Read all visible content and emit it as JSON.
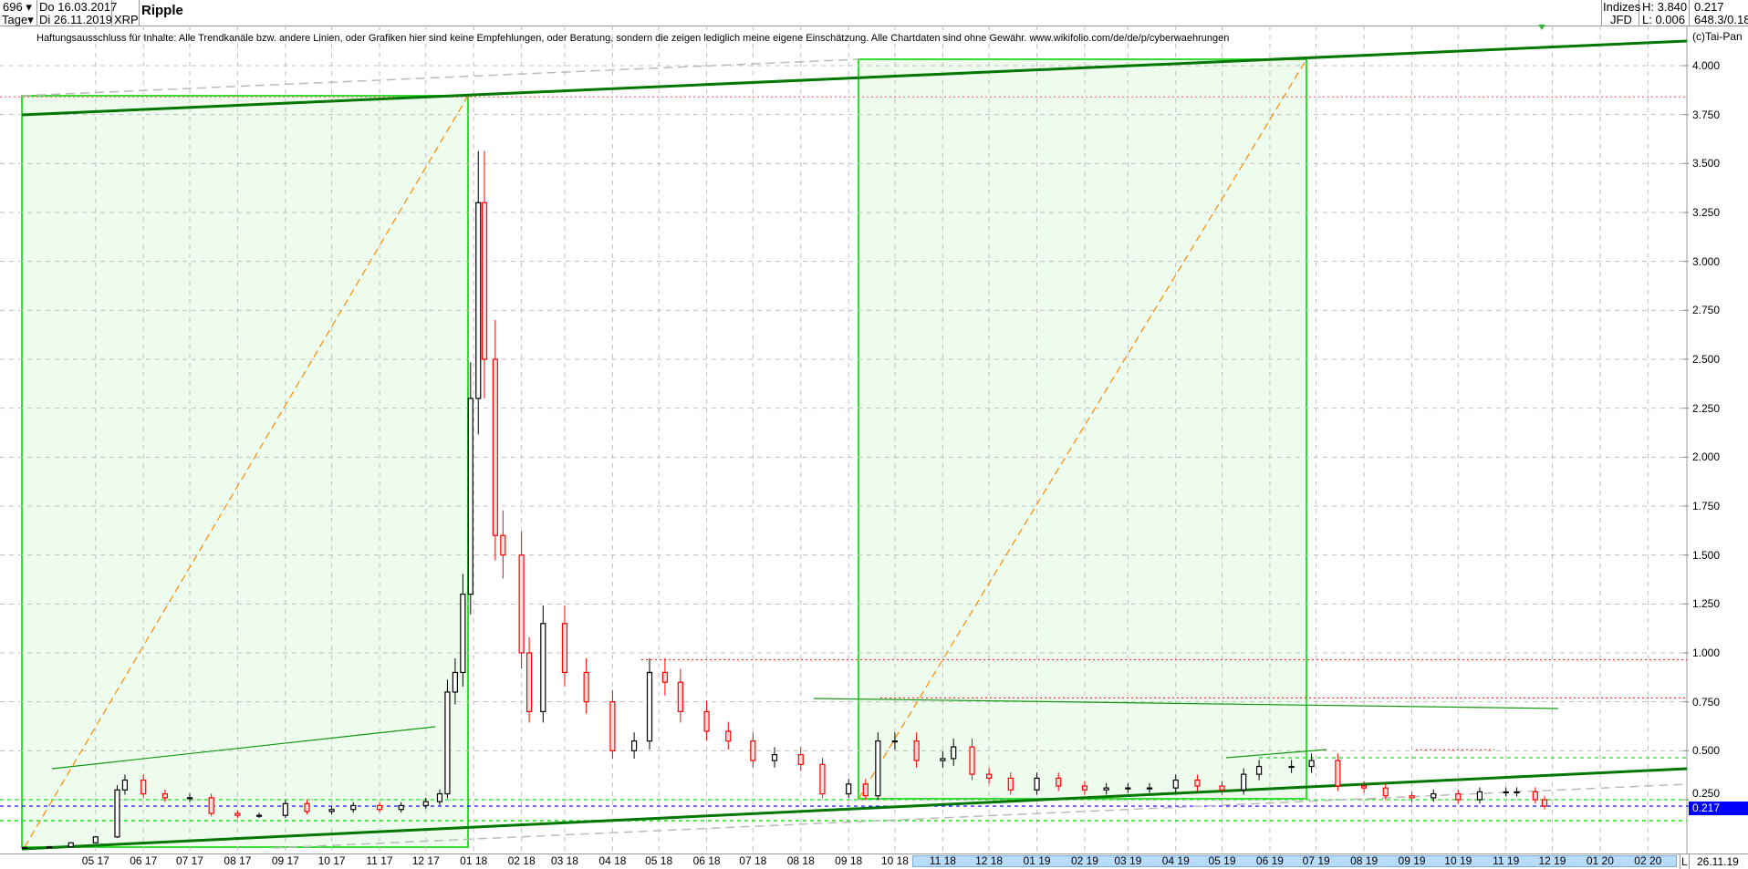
{
  "header": {
    "count": "696",
    "period": "Tage",
    "start_date": "Do 16.03.2017",
    "end_date": "Di 26.11.2019",
    "symbol": "XRP",
    "title": "Ripple",
    "market_1": "Indizes",
    "market_2": "JFD",
    "high": "H: 3.840",
    "low": "L: 0.006",
    "last": "0.217",
    "extra": "648.3/0.18"
  },
  "disclaimer": "Haftungsausschluss für Inhalte: Alle Trendkanäle bzw. andere Linien, oder Grafiken hier sind keine Empfehlungen, oder Beratung, sondern die zeigen lediglich meine eigene Einschätzung. Alle Chartdaten sind ohne Gewähr.  www.wikifolio.com/de/de/p/cyberwaehrungen",
  "copyright": "(c)Tai-Pan",
  "footer": {
    "scale_mode": "L",
    "last_date": "26.11.19"
  },
  "colors": {
    "up_body": "#ffffff",
    "up_outline": "#000000",
    "down": "#ff0000",
    "channel": "#007700",
    "box_fill": "#eefcee",
    "box_border": "#33dd33",
    "fib_dashed": "#ff8800",
    "current_price": "#0000ff"
  },
  "chart_data": {
    "type": "candlestick",
    "symbol": "XRP",
    "ylim": [
      0,
      4.1
    ],
    "y_ticks": [
      "0.250",
      "0.500",
      "0.750",
      "1.000",
      "1.250",
      "1.500",
      "1.750",
      "2.000",
      "2.250",
      "2.500",
      "2.750",
      "3.000",
      "3.250",
      "3.500",
      "3.750",
      "4.000"
    ],
    "x_ticks": [
      "05 17",
      "06 17",
      "07 17",
      "08 17",
      "09 17",
      "10 17",
      "11 17",
      "12 17",
      "01 18",
      "02 18",
      "03 18",
      "04 18",
      "05 18",
      "06 18",
      "07 18",
      "08 18",
      "09 18",
      "10 18",
      "11 18",
      "12 18",
      "01 19",
      "02 19",
      "03 19",
      "04 19",
      "05 19",
      "06 19",
      "07 19",
      "08 19",
      "09 19",
      "10 19",
      "11 19",
      "12 19",
      "01 20",
      "02 20"
    ],
    "grid": true,
    "current_value": "0.217",
    "high": 3.84,
    "low": 0.006,
    "dates": [
      "2017-03-16",
      "2017-04-01",
      "2017-04-15",
      "2017-05-01",
      "2017-05-15",
      "2017-05-20",
      "2017-06-01",
      "2017-06-15",
      "2017-07-01",
      "2017-07-15",
      "2017-08-01",
      "2017-08-15",
      "2017-09-01",
      "2017-09-15",
      "2017-10-01",
      "2017-10-15",
      "2017-11-01",
      "2017-11-15",
      "2017-12-01",
      "2017-12-10",
      "2017-12-15",
      "2017-12-20",
      "2017-12-25",
      "2017-12-30",
      "2018-01-04",
      "2018-01-08",
      "2018-01-15",
      "2018-01-20",
      "2018-02-01",
      "2018-02-06",
      "2018-02-15",
      "2018-03-01",
      "2018-03-15",
      "2018-04-01",
      "2018-04-15",
      "2018-04-25",
      "2018-05-05",
      "2018-05-15",
      "2018-06-01",
      "2018-06-15",
      "2018-07-01",
      "2018-07-15",
      "2018-08-01",
      "2018-08-15",
      "2018-09-01",
      "2018-09-12",
      "2018-09-20",
      "2018-10-01",
      "2018-10-15",
      "2018-11-01",
      "2018-11-08",
      "2018-11-20",
      "2018-12-01",
      "2018-12-15",
      "2019-01-01",
      "2019-01-15",
      "2019-02-01",
      "2019-02-15",
      "2019-03-01",
      "2019-03-15",
      "2019-04-01",
      "2019-04-15",
      "2019-05-01",
      "2019-05-15",
      "2019-05-25",
      "2019-06-15",
      "2019-06-28",
      "2019-07-15",
      "2019-08-01",
      "2019-08-15",
      "2019-09-01",
      "2019-09-15",
      "2019-10-01",
      "2019-10-15",
      "2019-11-01",
      "2019-11-08",
      "2019-11-20",
      "2019-11-26"
    ],
    "close": [
      0.006,
      0.01,
      0.03,
      0.06,
      0.3,
      0.35,
      0.28,
      0.26,
      0.26,
      0.18,
      0.17,
      0.17,
      0.23,
      0.19,
      0.2,
      0.22,
      0.2,
      0.22,
      0.24,
      0.28,
      0.8,
      0.9,
      1.3,
      2.3,
      3.3,
      2.5,
      1.6,
      1.5,
      1.0,
      0.7,
      1.15,
      0.9,
      0.75,
      0.5,
      0.55,
      0.9,
      0.85,
      0.7,
      0.6,
      0.55,
      0.45,
      0.48,
      0.43,
      0.28,
      0.33,
      0.27,
      0.55,
      0.55,
      0.45,
      0.46,
      0.52,
      0.38,
      0.36,
      0.3,
      0.36,
      0.32,
      0.3,
      0.31,
      0.31,
      0.31,
      0.35,
      0.32,
      0.3,
      0.38,
      0.42,
      0.42,
      0.45,
      0.32,
      0.31,
      0.27,
      0.26,
      0.28,
      0.25,
      0.29,
      0.29,
      0.29,
      0.25,
      0.217
    ],
    "horizontal_levels": {
      "resistance_red": [
        0.965,
        0.77,
        0.5,
        3.84
      ],
      "support_green": [
        0.217,
        0.25,
        0.17,
        0.5
      ],
      "current_blue": 0.217
    }
  }
}
